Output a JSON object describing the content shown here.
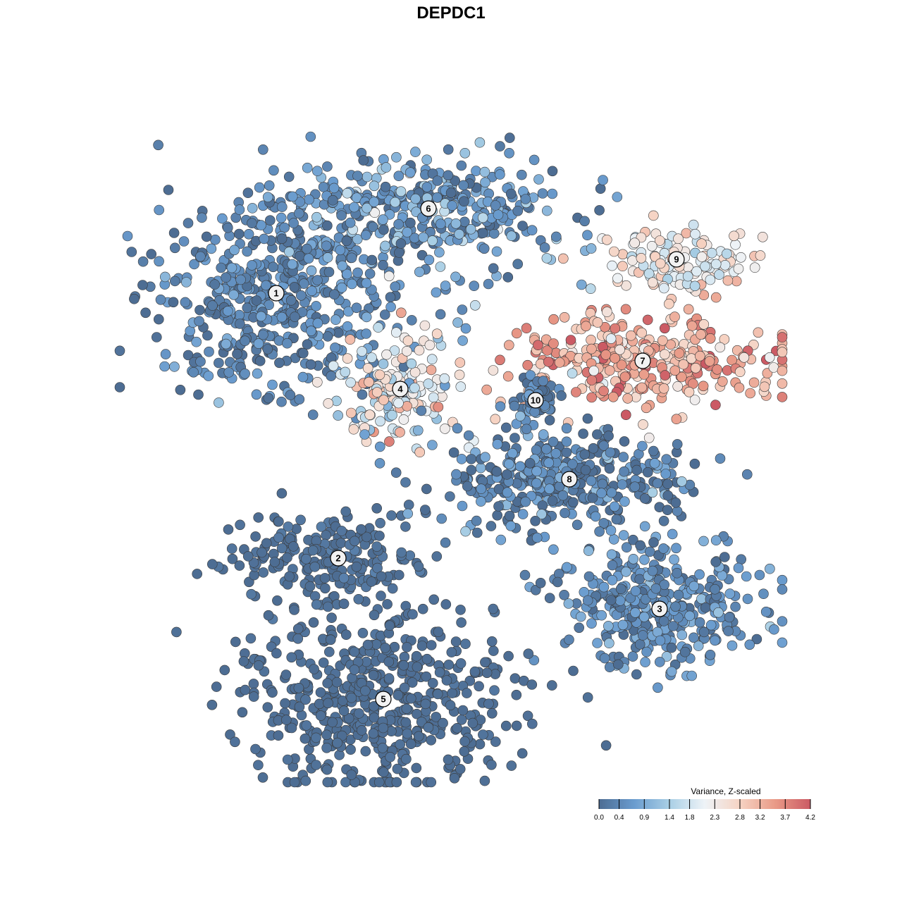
{
  "chart_data": {
    "type": "scatter",
    "title": "DEPDC1",
    "colorbar": {
      "title": "Variance, Z-scaled",
      "min": 0.0,
      "max": 4.2,
      "ticks": [
        0.0,
        0.4,
        0.9,
        1.4,
        1.8,
        2.3,
        2.8,
        3.2,
        3.7,
        4.2
      ],
      "tick_labels": [
        "0.0",
        "0.4",
        "0.9",
        "1.4",
        "1.8",
        "2.3",
        "2.8",
        "3.2",
        "3.7",
        "4.2"
      ],
      "placement": "bottom-right",
      "colors": [
        "#4d6d93",
        "#6a9ccf",
        "#a9cfe5",
        "#eef3f7",
        "#f6d3c3",
        "#e99a87",
        "#cb5a64"
      ]
    },
    "clusters": [
      {
        "id": "1",
        "label": "1",
        "x": -15.5,
        "y": 14.0,
        "value_mean": 0.35,
        "value_sd": 0.3,
        "n": 520
      },
      {
        "id": "2",
        "label": "2",
        "x": -10.0,
        "y": -9.5,
        "value_mean": 0.05,
        "value_sd": 0.1,
        "n": 210
      },
      {
        "id": "3",
        "label": "3",
        "x": 18.5,
        "y": -14.0,
        "value_mean": 0.45,
        "value_sd": 0.35,
        "n": 360
      },
      {
        "id": "4",
        "label": "4",
        "x": -4.5,
        "y": 5.5,
        "value_mean": 2.1,
        "value_sd": 0.7,
        "n": 160
      },
      {
        "id": "5",
        "label": "5",
        "x": -6.0,
        "y": -22.0,
        "value_mean": 0.02,
        "value_sd": 0.05,
        "n": 520
      },
      {
        "id": "6",
        "label": "6",
        "x": -2.0,
        "y": 21.5,
        "value_mean": 0.6,
        "value_sd": 0.5,
        "n": 360
      },
      {
        "id": "7",
        "label": "7",
        "x": 17.0,
        "y": 8.0,
        "value_mean": 3.3,
        "value_sd": 0.55,
        "n": 320
      },
      {
        "id": "8",
        "label": "8",
        "x": 10.5,
        "y": -2.5,
        "value_mean": 0.3,
        "value_sd": 0.5,
        "n": 360
      },
      {
        "id": "9",
        "label": "9",
        "x": 20.0,
        "y": 17.0,
        "value_mean": 2.3,
        "value_sd": 0.45,
        "n": 130
      },
      {
        "id": "10",
        "label": "10",
        "x": 7.5,
        "y": 4.5,
        "value_mean": 0.4,
        "value_sd": 0.4,
        "n": 60
      }
    ],
    "xlabel": "",
    "ylabel": "",
    "xlim": [
      -30,
      30
    ],
    "ylim": [
      -30,
      30
    ],
    "grid": false
  }
}
